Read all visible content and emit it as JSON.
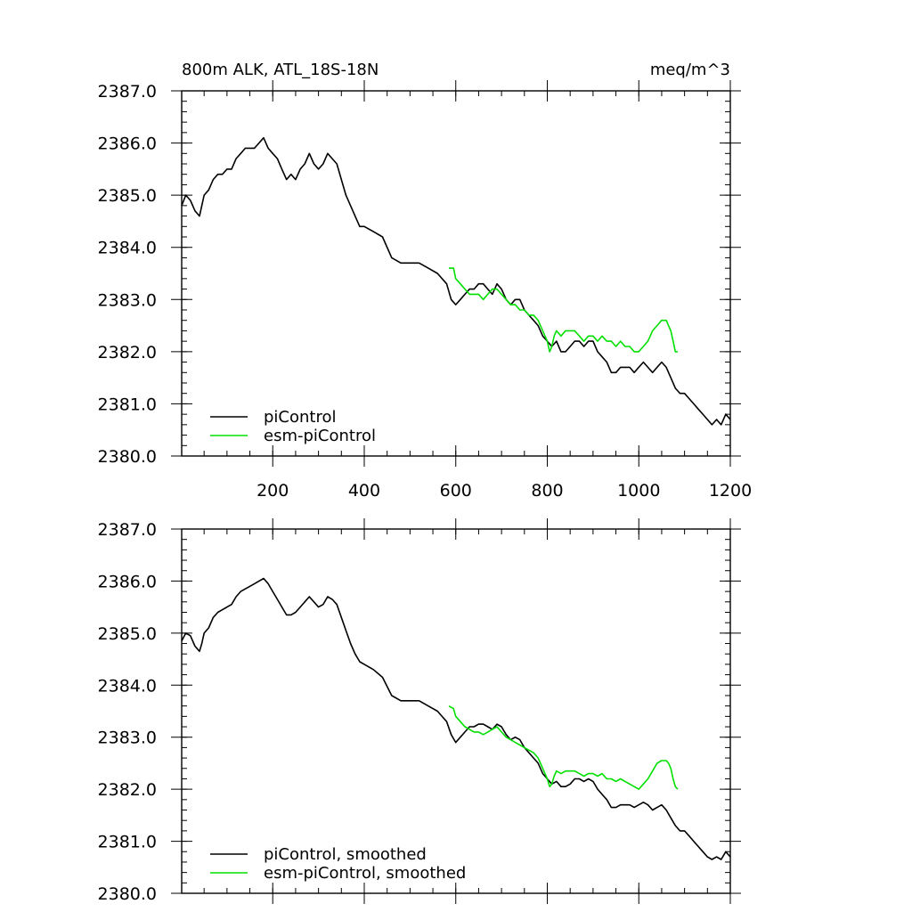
{
  "chart_data": [
    {
      "type": "line",
      "title": "800m ALK, ATL_18S-18N",
      "units_label": "meq/m^3",
      "xlim": [
        1,
        1200
      ],
      "ylim": [
        2380.0,
        2387.0
      ],
      "x_ticks": [
        200,
        400,
        600,
        800,
        1000,
        1200
      ],
      "x_tick_labels": [
        "200",
        "400",
        "600",
        "800",
        "1000",
        "1200"
      ],
      "y_ticks": [
        2380.0,
        2381.0,
        2382.0,
        2383.0,
        2384.0,
        2385.0,
        2386.0,
        2387.0
      ],
      "y_tick_labels": [
        "2380.0",
        "2381.0",
        "2382.0",
        "2383.0",
        "2384.0",
        "2385.0",
        "2386.0",
        "2387.0"
      ],
      "legend": {
        "position": "bottom-left",
        "entries": [
          "piControl",
          "esm-piControl"
        ]
      },
      "series": [
        {
          "name": "piControl",
          "color": "#000000",
          "x": [
            1,
            10,
            20,
            30,
            40,
            45,
            50,
            60,
            70,
            80,
            90,
            100,
            110,
            120,
            130,
            140,
            150,
            160,
            170,
            180,
            190,
            200,
            210,
            220,
            230,
            240,
            250,
            260,
            270,
            280,
            290,
            300,
            310,
            320,
            330,
            340,
            350,
            360,
            370,
            380,
            390,
            400,
            420,
            440,
            460,
            480,
            500,
            520,
            540,
            560,
            580,
            590,
            600,
            610,
            620,
            630,
            640,
            650,
            660,
            670,
            680,
            690,
            700,
            710,
            720,
            730,
            740,
            750,
            760,
            770,
            780,
            790,
            800,
            810,
            820,
            830,
            840,
            850,
            860,
            870,
            880,
            890,
            900,
            910,
            920,
            930,
            940,
            950,
            960,
            970,
            980,
            990,
            1000,
            1010,
            1020,
            1030,
            1040,
            1050,
            1060,
            1070,
            1080,
            1090,
            1100,
            1110,
            1120,
            1130,
            1140,
            1150,
            1160,
            1170,
            1180,
            1190,
            1200
          ],
          "values": [
            2384.8,
            2385.0,
            2384.9,
            2384.7,
            2384.6,
            2384.8,
            2385.0,
            2385.1,
            2385.3,
            2385.4,
            2385.4,
            2385.5,
            2385.5,
            2385.7,
            2385.8,
            2385.9,
            2385.9,
            2385.9,
            2386.0,
            2386.1,
            2385.9,
            2385.8,
            2385.7,
            2385.5,
            2385.3,
            2385.4,
            2385.3,
            2385.5,
            2385.6,
            2385.8,
            2385.6,
            2385.5,
            2385.6,
            2385.8,
            2385.7,
            2385.6,
            2385.3,
            2385.0,
            2384.8,
            2384.6,
            2384.4,
            2384.4,
            2384.3,
            2384.2,
            2383.8,
            2383.7,
            2383.7,
            2383.7,
            2383.6,
            2383.5,
            2383.3,
            2383.0,
            2382.9,
            2383.0,
            2383.1,
            2383.2,
            2383.2,
            2383.3,
            2383.3,
            2383.2,
            2383.1,
            2383.3,
            2383.2,
            2383.0,
            2382.9,
            2383.0,
            2383.0,
            2382.8,
            2382.7,
            2382.6,
            2382.5,
            2382.3,
            2382.2,
            2382.1,
            2382.2,
            2382.0,
            2382.0,
            2382.1,
            2382.2,
            2382.2,
            2382.1,
            2382.2,
            2382.2,
            2382.0,
            2381.9,
            2381.8,
            2381.6,
            2381.6,
            2381.7,
            2381.7,
            2381.7,
            2381.6,
            2381.7,
            2381.8,
            2381.7,
            2381.6,
            2381.7,
            2381.8,
            2381.7,
            2381.5,
            2381.3,
            2381.2,
            2381.2,
            2381.1,
            2381.0,
            2380.9,
            2380.8,
            2380.7,
            2380.6,
            2380.7,
            2380.6,
            2380.8,
            2380.7
          ]
        },
        {
          "name": "esm-piControl",
          "color": "#00e000",
          "x": [
            585,
            595,
            600,
            610,
            620,
            630,
            640,
            650,
            660,
            670,
            680,
            690,
            700,
            710,
            720,
            730,
            740,
            750,
            760,
            770,
            780,
            790,
            800,
            805,
            810,
            815,
            820,
            830,
            840,
            850,
            860,
            870,
            880,
            890,
            900,
            910,
            920,
            930,
            940,
            950,
            960,
            970,
            980,
            990,
            1000,
            1010,
            1020,
            1030,
            1040,
            1050,
            1060,
            1065,
            1070,
            1075,
            1080,
            1085
          ],
          "values": [
            2383.6,
            2383.6,
            2383.4,
            2383.3,
            2383.2,
            2383.1,
            2383.1,
            2383.1,
            2383.0,
            2383.1,
            2383.2,
            2383.2,
            2383.1,
            2383.0,
            2382.9,
            2382.9,
            2382.8,
            2382.8,
            2382.7,
            2382.7,
            2382.6,
            2382.4,
            2382.2,
            2382.0,
            2382.1,
            2382.3,
            2382.4,
            2382.3,
            2382.4,
            2382.4,
            2382.4,
            2382.3,
            2382.2,
            2382.3,
            2382.3,
            2382.2,
            2382.3,
            2382.2,
            2382.2,
            2382.1,
            2382.2,
            2382.1,
            2382.1,
            2382.0,
            2382.0,
            2382.1,
            2382.2,
            2382.4,
            2382.5,
            2382.6,
            2382.6,
            2382.5,
            2382.4,
            2382.2,
            2382.0,
            2382.0
          ]
        }
      ]
    },
    {
      "type": "line",
      "title": "",
      "xlim": [
        1,
        1200
      ],
      "ylim": [
        2380.0,
        2387.0
      ],
      "x_ticks": [
        200,
        400,
        600,
        800,
        1000,
        1200
      ],
      "x_tick_labels": [],
      "y_ticks": [
        2380.0,
        2381.0,
        2382.0,
        2383.0,
        2384.0,
        2385.0,
        2386.0,
        2387.0
      ],
      "y_tick_labels": [
        "2380.0",
        "2381.0",
        "2382.0",
        "2383.0",
        "2384.0",
        "2385.0",
        "2386.0",
        "2387.0"
      ],
      "legend": {
        "position": "bottom-left",
        "entries": [
          "piControl, smoothed",
          "esm-piControl, smoothed"
        ]
      },
      "series": [
        {
          "name": "piControl, smoothed",
          "color": "#000000",
          "x": [
            1,
            10,
            20,
            30,
            40,
            45,
            50,
            60,
            70,
            80,
            90,
            100,
            110,
            120,
            130,
            140,
            150,
            160,
            170,
            180,
            190,
            200,
            210,
            220,
            230,
            240,
            250,
            260,
            270,
            280,
            290,
            300,
            310,
            320,
            330,
            340,
            350,
            360,
            370,
            380,
            390,
            400,
            420,
            440,
            460,
            480,
            500,
            520,
            540,
            560,
            580,
            590,
            600,
            610,
            620,
            630,
            640,
            650,
            660,
            670,
            680,
            690,
            700,
            710,
            720,
            730,
            740,
            750,
            760,
            770,
            780,
            790,
            800,
            810,
            820,
            830,
            840,
            850,
            860,
            870,
            880,
            890,
            900,
            910,
            920,
            930,
            940,
            950,
            960,
            970,
            980,
            990,
            1000,
            1010,
            1020,
            1030,
            1040,
            1050,
            1060,
            1070,
            1080,
            1090,
            1100,
            1110,
            1120,
            1130,
            1140,
            1150,
            1160,
            1170,
            1180,
            1190,
            1200
          ],
          "values": [
            2384.85,
            2385.0,
            2384.95,
            2384.75,
            2384.65,
            2384.8,
            2385.0,
            2385.1,
            2385.3,
            2385.4,
            2385.45,
            2385.5,
            2385.55,
            2385.7,
            2385.8,
            2385.85,
            2385.9,
            2385.95,
            2386.0,
            2386.05,
            2385.95,
            2385.8,
            2385.65,
            2385.5,
            2385.35,
            2385.35,
            2385.4,
            2385.5,
            2385.6,
            2385.7,
            2385.6,
            2385.5,
            2385.55,
            2385.7,
            2385.65,
            2385.55,
            2385.3,
            2385.05,
            2384.8,
            2384.6,
            2384.45,
            2384.4,
            2384.3,
            2384.15,
            2383.8,
            2383.7,
            2383.7,
            2383.7,
            2383.6,
            2383.5,
            2383.3,
            2383.05,
            2382.9,
            2383.0,
            2383.1,
            2383.2,
            2383.2,
            2383.25,
            2383.25,
            2383.2,
            2383.15,
            2383.25,
            2383.2,
            2383.05,
            2382.95,
            2383.0,
            2382.95,
            2382.8,
            2382.7,
            2382.6,
            2382.5,
            2382.3,
            2382.2,
            2382.1,
            2382.15,
            2382.05,
            2382.05,
            2382.1,
            2382.2,
            2382.2,
            2382.15,
            2382.2,
            2382.15,
            2382.0,
            2381.9,
            2381.8,
            2381.65,
            2381.65,
            2381.7,
            2381.7,
            2381.7,
            2381.65,
            2381.7,
            2381.75,
            2381.7,
            2381.6,
            2381.65,
            2381.7,
            2381.6,
            2381.45,
            2381.3,
            2381.2,
            2381.2,
            2381.1,
            2381.0,
            2380.9,
            2380.8,
            2380.7,
            2380.65,
            2380.7,
            2380.65,
            2380.8,
            2380.7
          ]
        },
        {
          "name": "esm-piControl, smoothed",
          "color": "#00e000",
          "x": [
            585,
            595,
            600,
            610,
            620,
            630,
            640,
            650,
            660,
            670,
            680,
            690,
            700,
            710,
            720,
            730,
            740,
            750,
            760,
            770,
            780,
            790,
            800,
            805,
            810,
            815,
            820,
            830,
            840,
            850,
            860,
            870,
            880,
            890,
            900,
            910,
            920,
            930,
            940,
            950,
            960,
            970,
            980,
            990,
            1000,
            1010,
            1020,
            1030,
            1040,
            1050,
            1060,
            1065,
            1070,
            1075,
            1080,
            1085
          ],
          "values": [
            2383.6,
            2383.55,
            2383.4,
            2383.3,
            2383.2,
            2383.15,
            2383.1,
            2383.1,
            2383.05,
            2383.1,
            2383.15,
            2383.2,
            2383.1,
            2383.0,
            2382.95,
            2382.9,
            2382.85,
            2382.8,
            2382.75,
            2382.7,
            2382.6,
            2382.4,
            2382.2,
            2382.05,
            2382.1,
            2382.25,
            2382.35,
            2382.3,
            2382.35,
            2382.35,
            2382.35,
            2382.3,
            2382.25,
            2382.3,
            2382.3,
            2382.25,
            2382.3,
            2382.2,
            2382.2,
            2382.15,
            2382.2,
            2382.15,
            2382.1,
            2382.05,
            2382.0,
            2382.1,
            2382.2,
            2382.35,
            2382.5,
            2382.55,
            2382.55,
            2382.5,
            2382.4,
            2382.2,
            2382.05,
            2382.0
          ]
        }
      ]
    }
  ]
}
